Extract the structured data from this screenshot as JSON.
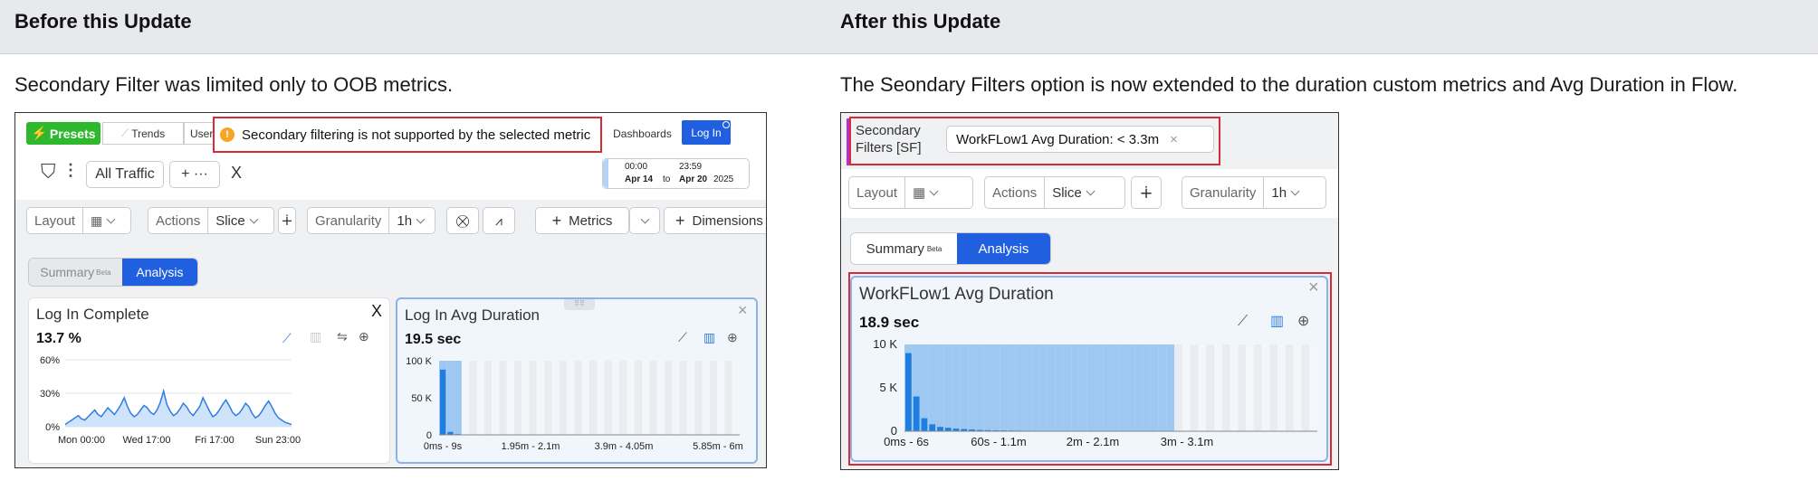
{
  "header": {
    "before": "Before this Update",
    "after": "After this Update"
  },
  "before": {
    "description": "Secondary Filter was limited only to OOB metrics.",
    "toolbar": {
      "presets": "Presets",
      "trends": "Trends",
      "users": "Users",
      "dashboards": "Dashboards",
      "login": "Log In"
    },
    "warning": "Secondary filtering is not supported by the selected metric",
    "filter": {
      "all_traffic": "All Traffic",
      "plus": "+ ···",
      "close": "X"
    },
    "date": {
      "start_time": "00:00",
      "start_date": "Apr 14",
      "to": "to",
      "end_time": "23:59",
      "end_date": "Apr 20",
      "year": "2025"
    },
    "controls": {
      "layout": "Layout",
      "actions": "Actions",
      "slice": "Slice",
      "granularity": "Granularity",
      "granularity_value": "1h",
      "metrics": "Metrics",
      "dimensions": "Dimensions"
    },
    "tabs": {
      "summary": "Summary",
      "beta": "Beta",
      "analysis": "Analysis"
    },
    "card1": {
      "title": "Log In Complete",
      "value": "13.7 %",
      "close": "X"
    },
    "card2": {
      "title": "Log In Avg Duration",
      "value": "19.5 sec",
      "close": "×"
    }
  },
  "after": {
    "description": "The Seondary Filters option is now extended to the duration custom metrics and Avg Duration in Flow.",
    "filters_label": "Secondary Filters [SF]",
    "chip": "WorkFLow1 Avg Duration: < 3.3m",
    "chip_close": "×",
    "controls": {
      "layout": "Layout",
      "actions": "Actions",
      "slice": "Slice",
      "granularity": "Granularity",
      "granularity_value": "1h"
    },
    "tabs": {
      "summary": "Summary",
      "beta": "Beta",
      "analysis": "Analysis"
    },
    "card": {
      "title": "WorkFLow1 Avg Duration",
      "value": "18.9 sec",
      "close": "×"
    }
  },
  "chart_data": [
    {
      "type": "area",
      "title": "Log In Complete",
      "x_ticks": [
        "Mon 00:00",
        "Wed 17:00",
        "Fri 17:00",
        "Sun 23:00"
      ],
      "y_ticks": [
        "60%",
        "30%",
        "0%"
      ],
      "ylim": [
        0,
        60
      ],
      "values": [
        2,
        4,
        6,
        8,
        10,
        7,
        6,
        9,
        12,
        15,
        11,
        9,
        13,
        17,
        14,
        11,
        15,
        20,
        26,
        18,
        12,
        9,
        11,
        15,
        19,
        17,
        13,
        11,
        15,
        22,
        32,
        20,
        14,
        10,
        12,
        16,
        21,
        18,
        13,
        10,
        14,
        18,
        26,
        20,
        14,
        9,
        11,
        15,
        20,
        24,
        19,
        13,
        10,
        12,
        16,
        21,
        18,
        12,
        8,
        10,
        14,
        19,
        23,
        18,
        12,
        8,
        6,
        4,
        3,
        2
      ]
    },
    {
      "type": "bar",
      "title": "Log In Avg Duration",
      "x_ticks": [
        "0ms - 9s",
        "1.95m - 2.1m",
        "3.9m - 4.05m",
        "5.85m - 6m"
      ],
      "y_ticks": [
        "100 K",
        "50 K",
        "0"
      ],
      "ylim": [
        0,
        100000
      ],
      "values": [
        88000,
        4000,
        1000,
        500,
        300,
        200
      ]
    },
    {
      "type": "bar",
      "title": "WorkFLow1 Avg Duration",
      "x_ticks": [
        "0ms - 6s",
        "60s - 1.1m",
        "2m - 2.1m",
        "3m - 3.1m"
      ],
      "y_ticks": [
        "10 K",
        "5 K",
        "0"
      ],
      "ylim": [
        0,
        10000
      ],
      "values": [
        9000,
        4000,
        1500,
        800,
        500,
        400,
        300,
        250,
        200,
        150,
        120,
        100,
        90,
        80,
        70,
        60,
        50,
        40,
        30,
        20
      ]
    }
  ]
}
